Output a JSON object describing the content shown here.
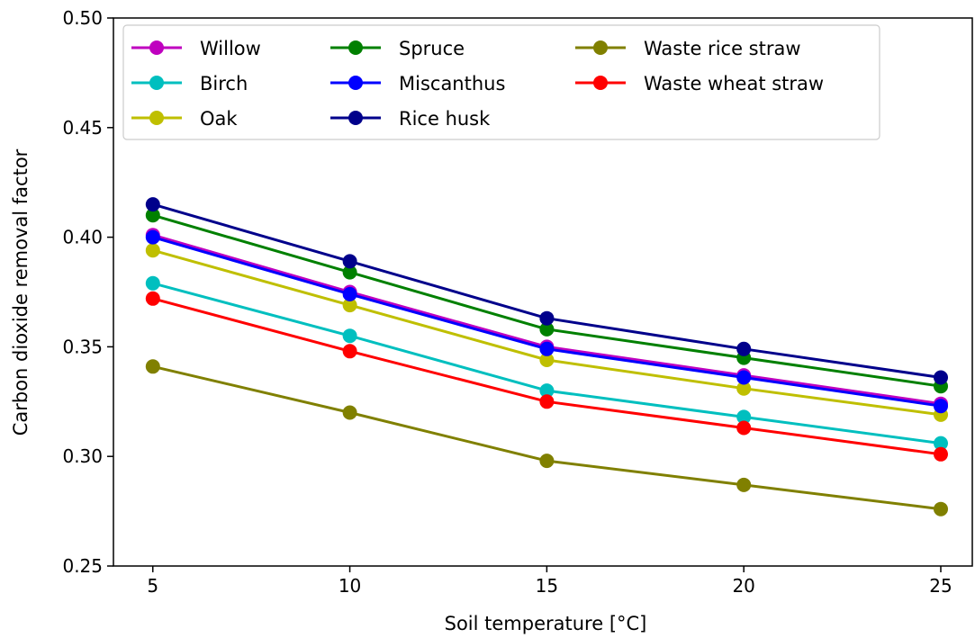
{
  "chart_data": {
    "type": "line",
    "title": "",
    "xlabel": "Soil temperature [°C]",
    "ylabel": "Carbon dioxide removal factor",
    "x": [
      5,
      10,
      15,
      20,
      25
    ],
    "xticks": [
      "5",
      "10",
      "15",
      "20",
      "25"
    ],
    "yticks": [
      "0.25",
      "0.30",
      "0.35",
      "0.40",
      "0.45",
      "0.50"
    ],
    "xlim": [
      4.0,
      25.8
    ],
    "ylim": [
      0.25,
      0.5
    ],
    "grid": false,
    "legend_position": "upper-left",
    "series": [
      {
        "name": "Willow",
        "color": "#bf00bf",
        "values": [
          0.401,
          0.375,
          0.35,
          0.337,
          0.324
        ]
      },
      {
        "name": "Birch",
        "color": "#00bfbf",
        "values": [
          0.379,
          0.355,
          0.33,
          0.318,
          0.306
        ]
      },
      {
        "name": "Oak",
        "color": "#bfbf00",
        "values": [
          0.394,
          0.369,
          0.344,
          0.331,
          0.319
        ]
      },
      {
        "name": "Spruce",
        "color": "#008000",
        "values": [
          0.41,
          0.384,
          0.358,
          0.345,
          0.332
        ]
      },
      {
        "name": "Miscanthus",
        "color": "#0000ff",
        "values": [
          0.4,
          0.374,
          0.349,
          0.336,
          0.323
        ]
      },
      {
        "name": "Rice husk",
        "color": "#00008b",
        "values": [
          0.415,
          0.389,
          0.363,
          0.349,
          0.336
        ]
      },
      {
        "name": "Waste rice straw",
        "color": "#808000",
        "values": [
          0.341,
          0.32,
          0.298,
          0.287,
          0.276
        ]
      },
      {
        "name": "Waste wheat straw",
        "color": "#ff0000",
        "values": [
          0.372,
          0.348,
          0.325,
          0.313,
          0.301
        ]
      }
    ]
  }
}
